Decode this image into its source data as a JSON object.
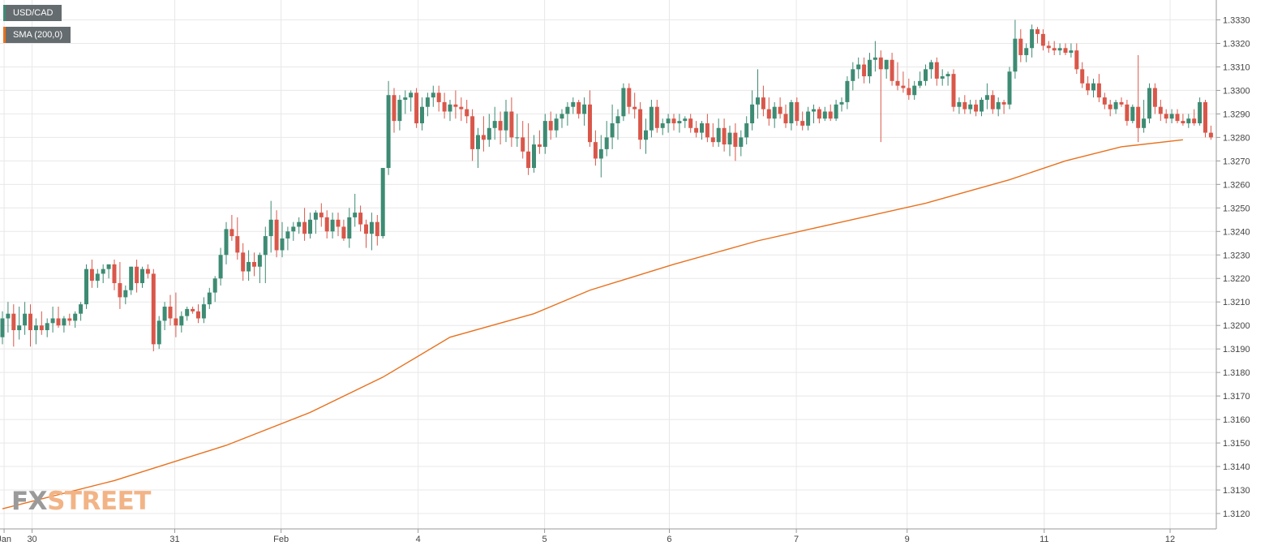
{
  "legend": {
    "symbol": "USD/CAD",
    "sma": "SMA (200,0)"
  },
  "watermark": {
    "part1": "FX",
    "part2": "STREET"
  },
  "colors": {
    "bullish": "#3d8b73",
    "bearish": "#d9574a",
    "sma": "#e8711e",
    "grid": "#e8e8e8",
    "axis_text": "#444444",
    "legend_bg": "#656c70",
    "watermark": "#f2b486"
  },
  "chart_data": {
    "type": "candlestick",
    "title": "",
    "ylim": [
      1.3115,
      1.3333
    ],
    "y_ticks": [
      "1.3330",
      "1.3320",
      "1.3310",
      "1.3300",
      "1.3290",
      "1.3280",
      "1.3270",
      "1.3260",
      "1.3250",
      "1.3240",
      "1.3230",
      "1.3220",
      "1.3210",
      "1.3200",
      "1.3190",
      "1.3180",
      "1.3170",
      "1.3160",
      "1.3150",
      "1.3140",
      "1.3130",
      "1.3120"
    ],
    "x_labels": [
      {
        "label": "Jan",
        "index": 0.3
      },
      {
        "label": "30",
        "index": 5.3
      },
      {
        "label": "31",
        "index": 30.8
      },
      {
        "label": "Feb",
        "index": 49.8
      },
      {
        "label": "4",
        "index": 74.3
      },
      {
        "label": "5",
        "index": 96.9
      },
      {
        "label": "6",
        "index": 119.2
      },
      {
        "label": "7",
        "index": 141.9
      },
      {
        "label": "9",
        "index": 161.7
      },
      {
        "label": "11",
        "index": 186.2
      },
      {
        "label": "12",
        "index": 208.7
      }
    ],
    "grid": true,
    "candles": [
      [
        1.3195,
        1.3206,
        1.3192,
        1.3203
      ],
      [
        1.3203,
        1.321,
        1.3197,
        1.3205
      ],
      [
        1.3205,
        1.3209,
        1.3191,
        1.3198
      ],
      [
        1.3198,
        1.3208,
        1.3194,
        1.32
      ],
      [
        1.32,
        1.321,
        1.3196,
        1.3205
      ],
      [
        1.3205,
        1.3209,
        1.3191,
        1.3198
      ],
      [
        1.3198,
        1.3203,
        1.3192,
        1.32
      ],
      [
        1.32,
        1.3206,
        1.3196,
        1.3198
      ],
      [
        1.3198,
        1.3203,
        1.3195,
        1.3201
      ],
      [
        1.3201,
        1.3208,
        1.3197,
        1.3203
      ],
      [
        1.3203,
        1.3208,
        1.3199,
        1.32
      ],
      [
        1.32,
        1.3204,
        1.3197,
        1.3203
      ],
      [
        1.3203,
        1.3205,
        1.32,
        1.3202
      ],
      [
        1.3202,
        1.3206,
        1.3199,
        1.3205
      ],
      [
        1.3205,
        1.321,
        1.3202,
        1.3209
      ],
      [
        1.3209,
        1.3226,
        1.3207,
        1.3224
      ],
      [
        1.3224,
        1.3228,
        1.3216,
        1.3219
      ],
      [
        1.3219,
        1.3224,
        1.3216,
        1.3222
      ],
      [
        1.3222,
        1.3226,
        1.3218,
        1.3224
      ],
      [
        1.3224,
        1.3225,
        1.322,
        1.3226
      ],
      [
        1.3226,
        1.3228,
        1.3215,
        1.3218
      ],
      [
        1.3218,
        1.3227,
        1.3207,
        1.3212
      ],
      [
        1.3212,
        1.3217,
        1.3209,
        1.3215
      ],
      [
        1.3215,
        1.3225,
        1.3213,
        1.3225
      ],
      [
        1.3225,
        1.3228,
        1.3214,
        1.3218
      ],
      [
        1.3218,
        1.3225,
        1.3216,
        1.3224
      ],
      [
        1.3224,
        1.3226,
        1.322,
        1.3222
      ],
      [
        1.3222,
        1.3224,
        1.3189,
        1.3192
      ],
      [
        1.3192,
        1.3204,
        1.319,
        1.3202
      ],
      [
        1.3202,
        1.321,
        1.3198,
        1.3208
      ],
      [
        1.3208,
        1.3213,
        1.32,
        1.3203
      ],
      [
        1.3203,
        1.3214,
        1.3195,
        1.32
      ],
      [
        1.32,
        1.3206,
        1.3197,
        1.3204
      ],
      [
        1.3204,
        1.3208,
        1.3202,
        1.3207
      ],
      [
        1.3207,
        1.3208,
        1.3205,
        1.3206
      ],
      [
        1.3206,
        1.3209,
        1.3201,
        1.3203
      ],
      [
        1.3203,
        1.3212,
        1.3201,
        1.3209
      ],
      [
        1.3209,
        1.3216,
        1.3207,
        1.3214
      ],
      [
        1.3214,
        1.3221,
        1.321,
        1.322
      ],
      [
        1.322,
        1.3233,
        1.3217,
        1.323
      ],
      [
        1.323,
        1.3244,
        1.3226,
        1.3241
      ],
      [
        1.3241,
        1.3247,
        1.3236,
        1.3238
      ],
      [
        1.3238,
        1.3246,
        1.3228,
        1.3231
      ],
      [
        1.3231,
        1.3235,
        1.3219,
        1.3223
      ],
      [
        1.3223,
        1.3232,
        1.3219,
        1.3227
      ],
      [
        1.3227,
        1.3231,
        1.3221,
        1.3225
      ],
      [
        1.3225,
        1.3231,
        1.3218,
        1.323
      ],
      [
        1.323,
        1.3242,
        1.3218,
        1.3238
      ],
      [
        1.3238,
        1.3253,
        1.3231,
        1.3245
      ],
      [
        1.3245,
        1.3249,
        1.3229,
        1.3232
      ],
      [
        1.3232,
        1.3244,
        1.3229,
        1.3237
      ],
      [
        1.3237,
        1.3242,
        1.3232,
        1.324
      ],
      [
        1.324,
        1.3244,
        1.3236,
        1.3242
      ],
      [
        1.3242,
        1.3246,
        1.3239,
        1.3244
      ],
      [
        1.3244,
        1.325,
        1.3236,
        1.3239
      ],
      [
        1.3239,
        1.3248,
        1.3237,
        1.3245
      ],
      [
        1.3245,
        1.3249,
        1.3239,
        1.3248
      ],
      [
        1.3248,
        1.3252,
        1.3242,
        1.3246
      ],
      [
        1.3246,
        1.3249,
        1.3237,
        1.324
      ],
      [
        1.324,
        1.3248,
        1.3237,
        1.3245
      ],
      [
        1.3245,
        1.3248,
        1.3238,
        1.3242
      ],
      [
        1.3242,
        1.3245,
        1.3236,
        1.3237
      ],
      [
        1.3237,
        1.325,
        1.3233,
        1.3246
      ],
      [
        1.3246,
        1.3256,
        1.3242,
        1.3248
      ],
      [
        1.3248,
        1.3251,
        1.324,
        1.3243
      ],
      [
        1.3243,
        1.3245,
        1.3233,
        1.3239
      ],
      [
        1.3239,
        1.3248,
        1.3232,
        1.3244
      ],
      [
        1.3244,
        1.3247,
        1.3234,
        1.3238
      ],
      [
        1.3238,
        1.3266,
        1.3237,
        1.3267
      ],
      [
        1.3267,
        1.3304,
        1.3264,
        1.3298
      ],
      [
        1.3298,
        1.3301,
        1.3282,
        1.3287
      ],
      [
        1.3287,
        1.3298,
        1.3283,
        1.3296
      ],
      [
        1.3296,
        1.33,
        1.329,
        1.3297
      ],
      [
        1.3297,
        1.33,
        1.3291,
        1.3299
      ],
      [
        1.3299,
        1.3301,
        1.3284,
        1.3286
      ],
      [
        1.3286,
        1.3297,
        1.3283,
        1.3293
      ],
      [
        1.3293,
        1.3299,
        1.3289,
        1.3297
      ],
      [
        1.3297,
        1.3302,
        1.3293,
        1.3299
      ],
      [
        1.3299,
        1.3302,
        1.3291,
        1.3295
      ],
      [
        1.3295,
        1.3299,
        1.3288,
        1.3291
      ],
      [
        1.3291,
        1.3296,
        1.3287,
        1.3294
      ],
      [
        1.3294,
        1.33,
        1.3288,
        1.3293
      ],
      [
        1.3293,
        1.3297,
        1.3287,
        1.3292
      ],
      [
        1.3292,
        1.3296,
        1.3286,
        1.3289
      ],
      [
        1.3289,
        1.3292,
        1.327,
        1.3275
      ],
      [
        1.3275,
        1.3284,
        1.3267,
        1.3281
      ],
      [
        1.3281,
        1.3289,
        1.3274,
        1.3279
      ],
      [
        1.3279,
        1.329,
        1.3276,
        1.3284
      ],
      [
        1.3284,
        1.3293,
        1.3279,
        1.3287
      ],
      [
        1.3287,
        1.3291,
        1.3277,
        1.3283
      ],
      [
        1.3283,
        1.3296,
        1.3278,
        1.3291
      ],
      [
        1.3291,
        1.3297,
        1.3276,
        1.328
      ],
      [
        1.328,
        1.329,
        1.3276,
        1.328
      ],
      [
        1.328,
        1.3287,
        1.3271,
        1.3274
      ],
      [
        1.3274,
        1.3286,
        1.3264,
        1.3267
      ],
      [
        1.3267,
        1.3281,
        1.3265,
        1.3277
      ],
      [
        1.3277,
        1.3283,
        1.3273,
        1.3276
      ],
      [
        1.3276,
        1.329,
        1.3273,
        1.3287
      ],
      [
        1.3287,
        1.3291,
        1.3279,
        1.3283
      ],
      [
        1.3283,
        1.329,
        1.328,
        1.3288
      ],
      [
        1.3288,
        1.3292,
        1.3284,
        1.329
      ],
      [
        1.329,
        1.3295,
        1.3285,
        1.3293
      ],
      [
        1.3293,
        1.3297,
        1.329,
        1.3295
      ],
      [
        1.3295,
        1.3296,
        1.3288,
        1.329
      ],
      [
        1.329,
        1.3297,
        1.3285,
        1.3294
      ],
      [
        1.3294,
        1.33,
        1.3276,
        1.3278
      ],
      [
        1.3278,
        1.3283,
        1.3268,
        1.3271
      ],
      [
        1.3271,
        1.3281,
        1.3263,
        1.3275
      ],
      [
        1.3275,
        1.3287,
        1.3272,
        1.328
      ],
      [
        1.328,
        1.3294,
        1.3275,
        1.3286
      ],
      [
        1.3286,
        1.3292,
        1.3279,
        1.3289
      ],
      [
        1.3289,
        1.3303,
        1.3287,
        1.3301
      ],
      [
        1.3301,
        1.3303,
        1.329,
        1.3293
      ],
      [
        1.3293,
        1.3299,
        1.3288,
        1.3292
      ],
      [
        1.3292,
        1.3295,
        1.3275,
        1.3279
      ],
      [
        1.3279,
        1.3288,
        1.3273,
        1.3283
      ],
      [
        1.3283,
        1.3296,
        1.328,
        1.3293
      ],
      [
        1.3293,
        1.3296,
        1.3282,
        1.3284
      ],
      [
        1.3284,
        1.3288,
        1.3281,
        1.3286
      ],
      [
        1.3286,
        1.329,
        1.3282,
        1.3288
      ],
      [
        1.3288,
        1.329,
        1.3283,
        1.3286
      ],
      [
        1.3286,
        1.329,
        1.3282,
        1.3287
      ],
      [
        1.3287,
        1.3289,
        1.3284,
        1.3288
      ],
      [
        1.3288,
        1.329,
        1.3282,
        1.3284
      ],
      [
        1.3284,
        1.3287,
        1.328,
        1.3282
      ],
      [
        1.3282,
        1.3287,
        1.3279,
        1.3286
      ],
      [
        1.3286,
        1.329,
        1.3278,
        1.328
      ],
      [
        1.328,
        1.3286,
        1.3276,
        1.3278
      ],
      [
        1.3278,
        1.3288,
        1.3276,
        1.3284
      ],
      [
        1.3284,
        1.3288,
        1.3274,
        1.3277
      ],
      [
        1.3277,
        1.3285,
        1.3272,
        1.3282
      ],
      [
        1.3282,
        1.3286,
        1.327,
        1.3276
      ],
      [
        1.3276,
        1.3283,
        1.3272,
        1.328
      ],
      [
        1.328,
        1.3289,
        1.3277,
        1.3286
      ],
      [
        1.3286,
        1.33,
        1.3283,
        1.3294
      ],
      [
        1.3294,
        1.3309,
        1.3288,
        1.3297
      ],
      [
        1.3297,
        1.3302,
        1.3289,
        1.3292
      ],
      [
        1.3292,
        1.3297,
        1.3285,
        1.3288
      ],
      [
        1.3288,
        1.3295,
        1.3284,
        1.3293
      ],
      [
        1.3293,
        1.3297,
        1.3288,
        1.329
      ],
      [
        1.329,
        1.3294,
        1.3284,
        1.3286
      ],
      [
        1.3286,
        1.3296,
        1.3283,
        1.3295
      ],
      [
        1.3295,
        1.3297,
        1.3285,
        1.3287
      ],
      [
        1.3287,
        1.3291,
        1.3283,
        1.3285
      ],
      [
        1.3285,
        1.3293,
        1.3283,
        1.3291
      ],
      [
        1.3291,
        1.3294,
        1.3286,
        1.3292
      ],
      [
        1.3292,
        1.3293,
        1.3286,
        1.3288
      ],
      [
        1.3288,
        1.3293,
        1.3287,
        1.3291
      ],
      [
        1.3291,
        1.3294,
        1.3287,
        1.3288
      ],
      [
        1.3288,
        1.3296,
        1.3287,
        1.3294
      ],
      [
        1.3294,
        1.3297,
        1.3291,
        1.3295
      ],
      [
        1.3295,
        1.3306,
        1.3292,
        1.3304
      ],
      [
        1.3304,
        1.3312,
        1.33,
        1.3309
      ],
      [
        1.3309,
        1.3314,
        1.3305,
        1.3311
      ],
      [
        1.3311,
        1.3314,
        1.3303,
        1.3306
      ],
      [
        1.3306,
        1.3316,
        1.3303,
        1.3313
      ],
      [
        1.3313,
        1.3321,
        1.3308,
        1.3314
      ],
      [
        1.3314,
        1.3317,
        1.3278,
        1.3309
      ],
      [
        1.3309,
        1.3313,
        1.3305,
        1.3313
      ],
      [
        1.3313,
        1.3316,
        1.3302,
        1.3304
      ],
      [
        1.3304,
        1.3312,
        1.33,
        1.3302
      ],
      [
        1.3302,
        1.3308,
        1.3299,
        1.3301
      ],
      [
        1.3301,
        1.3305,
        1.3296,
        1.3298
      ],
      [
        1.3298,
        1.3304,
        1.3296,
        1.3302
      ],
      [
        1.3302,
        1.3308,
        1.3301,
        1.3304
      ],
      [
        1.3304,
        1.3311,
        1.3302,
        1.3309
      ],
      [
        1.3309,
        1.3313,
        1.3305,
        1.3312
      ],
      [
        1.3312,
        1.3314,
        1.3302,
        1.3305
      ],
      [
        1.3305,
        1.3309,
        1.3302,
        1.3306
      ],
      [
        1.3306,
        1.3308,
        1.3302,
        1.3307
      ],
      [
        1.3307,
        1.3309,
        1.3291,
        1.3293
      ],
      [
        1.3293,
        1.3297,
        1.329,
        1.3295
      ],
      [
        1.3295,
        1.3298,
        1.329,
        1.3292
      ],
      [
        1.3292,
        1.3296,
        1.329,
        1.3294
      ],
      [
        1.3294,
        1.3296,
        1.3289,
        1.3291
      ],
      [
        1.3291,
        1.3297,
        1.3289,
        1.3296
      ],
      [
        1.3296,
        1.3303,
        1.3292,
        1.3298
      ],
      [
        1.3298,
        1.33,
        1.329,
        1.3292
      ],
      [
        1.3292,
        1.3297,
        1.3289,
        1.3295
      ],
      [
        1.3295,
        1.3296,
        1.329,
        1.3294
      ],
      [
        1.3294,
        1.331,
        1.3292,
        1.3308
      ],
      [
        1.3308,
        1.333,
        1.3305,
        1.3322
      ],
      [
        1.3322,
        1.3326,
        1.3312,
        1.3315
      ],
      [
        1.3315,
        1.332,
        1.3312,
        1.3318
      ],
      [
        1.3318,
        1.3328,
        1.3314,
        1.3326
      ],
      [
        1.3326,
        1.3327,
        1.332,
        1.3324
      ],
      [
        1.3324,
        1.3326,
        1.3317,
        1.3319
      ],
      [
        1.3319,
        1.3321,
        1.3316,
        1.3318
      ],
      [
        1.3318,
        1.3321,
        1.3315,
        1.3317
      ],
      [
        1.3317,
        1.332,
        1.3315,
        1.3318
      ],
      [
        1.3318,
        1.332,
        1.3315,
        1.3316
      ],
      [
        1.3316,
        1.332,
        1.3314,
        1.3317
      ],
      [
        1.3317,
        1.332,
        1.3307,
        1.3309
      ],
      [
        1.3309,
        1.3312,
        1.3301,
        1.3303
      ],
      [
        1.3303,
        1.3306,
        1.3298,
        1.33
      ],
      [
        1.33,
        1.3305,
        1.3297,
        1.3303
      ],
      [
        1.3303,
        1.3307,
        1.3295,
        1.3297
      ],
      [
        1.3297,
        1.3299,
        1.3292,
        1.3294
      ],
      [
        1.3294,
        1.3296,
        1.3289,
        1.3292
      ],
      [
        1.3292,
        1.3296,
        1.329,
        1.3295
      ],
      [
        1.3295,
        1.3297,
        1.3293,
        1.3294
      ],
      [
        1.3294,
        1.3296,
        1.3285,
        1.3287
      ],
      [
        1.3287,
        1.3294,
        1.3286,
        1.3293
      ],
      [
        1.3293,
        1.3315,
        1.3278,
        1.3284
      ],
      [
        1.3284,
        1.3296,
        1.3282,
        1.3288
      ],
      [
        1.3288,
        1.3303,
        1.3286,
        1.3301
      ],
      [
        1.3301,
        1.3303,
        1.329,
        1.3293
      ],
      [
        1.3293,
        1.3296,
        1.3287,
        1.329
      ],
      [
        1.329,
        1.3292,
        1.3286,
        1.3288
      ],
      [
        1.3288,
        1.3292,
        1.3286,
        1.329
      ],
      [
        1.329,
        1.3292,
        1.3286,
        1.3287
      ],
      [
        1.3287,
        1.329,
        1.3285,
        1.3286
      ],
      [
        1.3286,
        1.329,
        1.3284,
        1.3288
      ],
      [
        1.3288,
        1.3292,
        1.3285,
        1.3286
      ],
      [
        1.3286,
        1.3297,
        1.3285,
        1.3295
      ],
      [
        1.3295,
        1.3296,
        1.328,
        1.3282
      ],
      [
        1.3282,
        1.3285,
        1.3279,
        1.328
      ]
    ],
    "sma": {
      "name": "SMA (200,0)",
      "points": [
        [
          0,
          1.3122
        ],
        [
          20,
          1.3134
        ],
        [
          40,
          1.3149
        ],
        [
          55,
          1.3163
        ],
        [
          68,
          1.3178
        ],
        [
          80,
          1.3195
        ],
        [
          95,
          1.3205
        ],
        [
          105,
          1.3215
        ],
        [
          120,
          1.3226
        ],
        [
          135,
          1.3236
        ],
        [
          150,
          1.3244
        ],
        [
          165,
          1.3252
        ],
        [
          180,
          1.3262
        ],
        [
          190,
          1.327
        ],
        [
          200,
          1.3276
        ],
        [
          211,
          1.3279
        ]
      ]
    }
  }
}
